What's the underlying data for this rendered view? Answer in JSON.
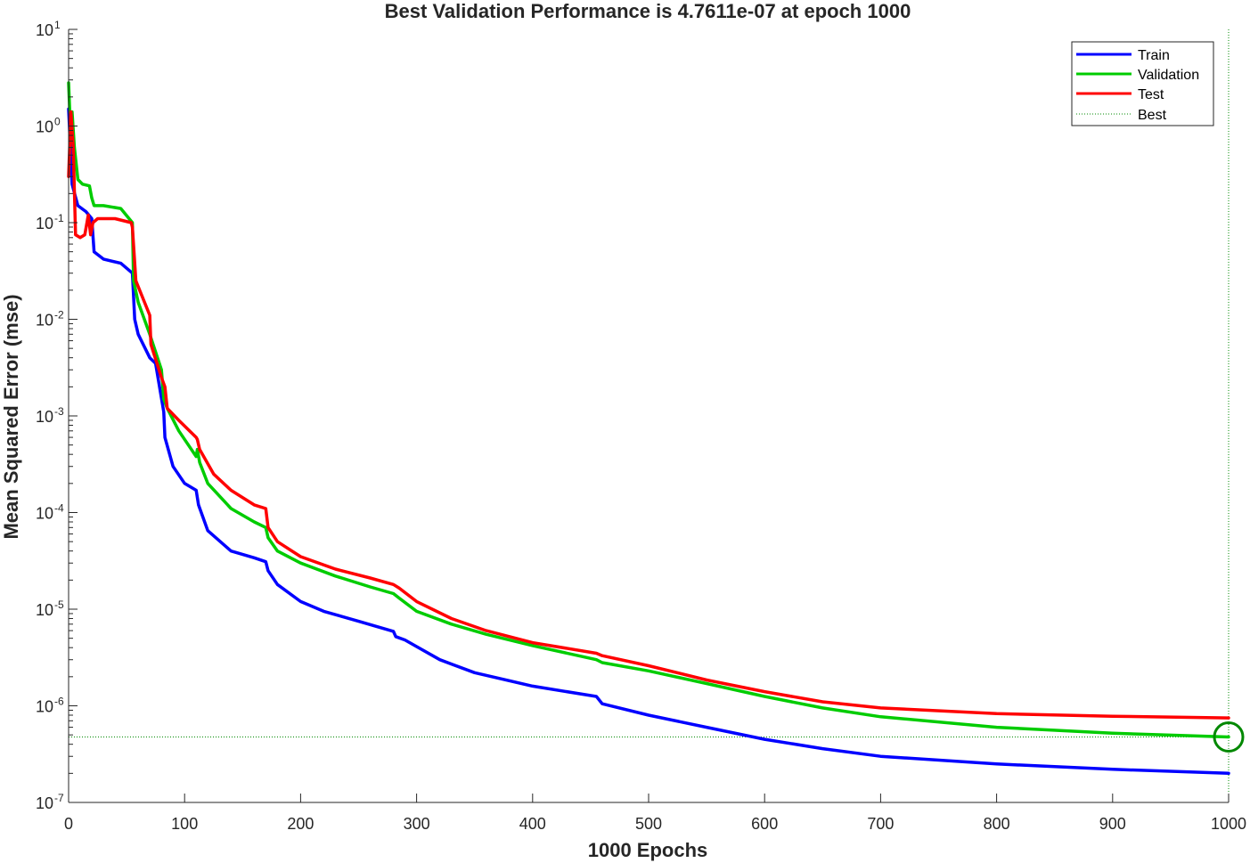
{
  "colors": {
    "train": "#0000ff",
    "validation": "#00cc00",
    "test": "#ff0000",
    "best": "#008800",
    "axes": "#262626"
  },
  "chart_data": {
    "type": "line",
    "title": "Best Validation Performance is 4.7611e-07 at epoch 1000",
    "xlabel": "1000 Epochs",
    "ylabel": "Mean Squared Error  (mse)",
    "x_scale": "linear",
    "y_scale": "log",
    "xlim": [
      0,
      1000
    ],
    "ylim": [
      1e-07,
      10
    ],
    "x_ticks": [
      0,
      100,
      200,
      300,
      400,
      500,
      600,
      700,
      800,
      900,
      1000
    ],
    "y_ticks": [
      {
        "base": "10",
        "exp": "-7",
        "value": 1e-07
      },
      {
        "base": "10",
        "exp": "-6",
        "value": 1e-06
      },
      {
        "base": "10",
        "exp": "-5",
        "value": 1e-05
      },
      {
        "base": "10",
        "exp": "-4",
        "value": 0.0001
      },
      {
        "base": "10",
        "exp": "-3",
        "value": 0.001
      },
      {
        "base": "10",
        "exp": "-2",
        "value": 0.01
      },
      {
        "base": "10",
        "exp": "-1",
        "value": 0.1
      },
      {
        "base": "10",
        "exp": "0",
        "value": 1
      },
      {
        "base": "10",
        "exp": "1",
        "value": 10
      }
    ],
    "grid": false,
    "legend_position": "top-right",
    "series": [
      {
        "name": "Train",
        "color": "#0000ff",
        "x": [
          0,
          3,
          8,
          15,
          20,
          22,
          30,
          45,
          55,
          57,
          60,
          70,
          75,
          82,
          83,
          90,
          100,
          110,
          112,
          120,
          140,
          160,
          170,
          172,
          180,
          200,
          220,
          250,
          280,
          282,
          290,
          300,
          320,
          350,
          400,
          455,
          460,
          500,
          550,
          600,
          650,
          700,
          800,
          900,
          1000
        ],
        "y": [
          1.5,
          0.25,
          0.15,
          0.13,
          0.11,
          0.05,
          0.042,
          0.038,
          0.03,
          0.01,
          0.007,
          0.004,
          0.0035,
          0.0011,
          0.0006,
          0.0003,
          0.0002,
          0.00017,
          0.00012,
          6.5e-05,
          4e-05,
          3.4e-05,
          3.1e-05,
          2.5e-05,
          1.8e-05,
          1.2e-05,
          9.5e-06,
          7.5e-06,
          5.9e-06,
          5.2e-06,
          4.8e-06,
          4.1e-06,
          3e-06,
          2.2e-06,
          1.6e-06,
          1.25e-06,
          1.05e-06,
          8e-07,
          6e-07,
          4.5e-07,
          3.6e-07,
          3e-07,
          2.5e-07,
          2.2e-07,
          2e-07
        ]
      },
      {
        "name": "Validation",
        "color": "#00cc00",
        "x": [
          0,
          1,
          3,
          5,
          8,
          12,
          18,
          20,
          22,
          30,
          45,
          55,
          56,
          60,
          70,
          80,
          82,
          85,
          95,
          110,
          111,
          113,
          120,
          140,
          160,
          170,
          172,
          180,
          200,
          230,
          260,
          280,
          285,
          300,
          330,
          360,
          400,
          455,
          460,
          500,
          550,
          600,
          650,
          700,
          800,
          900,
          1000
        ],
        "y": [
          2.8,
          1.4,
          1.4,
          0.6,
          0.28,
          0.25,
          0.24,
          0.18,
          0.15,
          0.15,
          0.14,
          0.1,
          0.025,
          0.015,
          0.007,
          0.003,
          0.0015,
          0.0012,
          0.0007,
          0.00038,
          0.00045,
          0.00033,
          0.0002,
          0.00011,
          8e-05,
          7e-05,
          5.5e-05,
          4e-05,
          3e-05,
          2.2e-05,
          1.7e-05,
          1.45e-05,
          1.3e-05,
          9.5e-06,
          7e-06,
          5.5e-06,
          4.2e-06,
          3e-06,
          2.8e-06,
          2.3e-06,
          1.7e-06,
          1.25e-06,
          9.5e-07,
          7.7e-07,
          6e-07,
          5.2e-07,
          4.7611e-07
        ]
      },
      {
        "name": "Test",
        "color": "#ff0000",
        "x": [
          0,
          2,
          4,
          6,
          10,
          14,
          17,
          19,
          21,
          25,
          40,
          54,
          55,
          58,
          70,
          71,
          80,
          83,
          85,
          95,
          110,
          111,
          113,
          125,
          140,
          160,
          170,
          172,
          180,
          200,
          230,
          260,
          280,
          285,
          300,
          330,
          360,
          400,
          455,
          460,
          500,
          550,
          600,
          650,
          700,
          800,
          900,
          1000
        ],
        "y": [
          0.3,
          1.4,
          0.6,
          0.075,
          0.07,
          0.075,
          0.12,
          0.075,
          0.1,
          0.11,
          0.11,
          0.1,
          0.09,
          0.025,
          0.011,
          0.0055,
          0.0025,
          0.002,
          0.0012,
          0.0009,
          0.0006,
          0.00057,
          0.00045,
          0.00025,
          0.00017,
          0.00012,
          0.00011,
          7e-05,
          5e-05,
          3.5e-05,
          2.6e-05,
          2.1e-05,
          1.8e-05,
          1.65e-05,
          1.2e-05,
          8e-06,
          6e-06,
          4.5e-06,
          3.5e-06,
          3.3e-06,
          2.6e-06,
          1.85e-06,
          1.4e-06,
          1.1e-06,
          9.5e-07,
          8.3e-07,
          7.8e-07,
          7.5e-07
        ]
      }
    ],
    "best": {
      "label": "Best",
      "epoch": 1000,
      "value": 4.7611e-07
    }
  }
}
